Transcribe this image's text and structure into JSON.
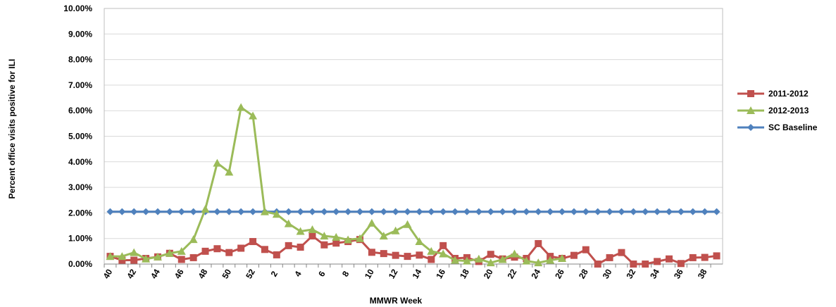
{
  "chart_data": {
    "type": "line",
    "title": "",
    "xlabel": "MMWR Week",
    "ylabel": "Percent office visits positive for ILI",
    "ylim": [
      0,
      10
    ],
    "y_tick_labels": [
      "0.00%",
      "1.00%",
      "2.00%",
      "3.00%",
      "4.00%",
      "5.00%",
      "6.00%",
      "7.00%",
      "8.00%",
      "9.00%",
      "10.00%"
    ],
    "grid": true,
    "legend_position": "right",
    "categories": [
      "40",
      "41",
      "42",
      "43",
      "44",
      "45",
      "46",
      "47",
      "48",
      "49",
      "50",
      "51",
      "52",
      "1",
      "2",
      "3",
      "4",
      "5",
      "6",
      "7",
      "8",
      "9",
      "10",
      "11",
      "12",
      "13",
      "14",
      "15",
      "16",
      "17",
      "18",
      "19",
      "20",
      "21",
      "22",
      "23",
      "24",
      "25",
      "26",
      "27",
      "28",
      "29",
      "30",
      "31",
      "32",
      "33",
      "34",
      "35",
      "36",
      "37",
      "38",
      "39"
    ],
    "x_tick_labels": [
      "40",
      "42",
      "44",
      "46",
      "48",
      "50",
      "52",
      "2",
      "4",
      "6",
      "8",
      "10",
      "12",
      "14",
      "16",
      "18",
      "20",
      "22",
      "24",
      "26",
      "28",
      "30",
      "32",
      "34",
      "36",
      "38"
    ],
    "series": [
      {
        "name": "2011-2012",
        "color": "#C0504D",
        "marker": "square",
        "values": [
          0.3,
          0.15,
          0.15,
          0.22,
          0.28,
          0.42,
          0.18,
          0.25,
          0.5,
          0.6,
          0.45,
          0.62,
          0.88,
          0.57,
          0.36,
          0.72,
          0.66,
          1.1,
          0.75,
          0.82,
          0.88,
          0.96,
          0.46,
          0.41,
          0.34,
          0.3,
          0.35,
          0.18,
          0.72,
          0.22,
          0.25,
          0.1,
          0.38,
          0.2,
          0.27,
          0.22,
          0.8,
          0.3,
          0.22,
          0.34,
          0.56,
          0.0,
          0.25,
          0.45,
          0.0,
          0.0,
          0.1,
          0.2,
          0.02,
          0.25,
          0.26,
          0.32
        ]
      },
      {
        "name": "2012-2013",
        "color": "#9BBB59",
        "marker": "triangle",
        "values": [
          0.3,
          0.3,
          0.45,
          0.2,
          0.28,
          0.42,
          0.5,
          0.96,
          2.15,
          3.95,
          3.6,
          6.13,
          5.8,
          2.05,
          1.95,
          1.58,
          1.28,
          1.35,
          1.1,
          1.05,
          0.95,
          1.0,
          1.6,
          1.1,
          1.3,
          1.55,
          0.88,
          0.5,
          0.4,
          0.15,
          0.12,
          0.2,
          0.05,
          0.18,
          0.4,
          0.12,
          0.05,
          0.15,
          0.22,
          null,
          null,
          null,
          null,
          null,
          null,
          null,
          null,
          null,
          null,
          null,
          null,
          null
        ]
      },
      {
        "name": "SC Baseline",
        "color": "#4F81BD",
        "marker": "diamond",
        "values": [
          2.05,
          2.05,
          2.05,
          2.05,
          2.05,
          2.05,
          2.05,
          2.05,
          2.05,
          2.05,
          2.05,
          2.05,
          2.05,
          2.05,
          2.05,
          2.05,
          2.05,
          2.05,
          2.05,
          2.05,
          2.05,
          2.05,
          2.05,
          2.05,
          2.05,
          2.05,
          2.05,
          2.05,
          2.05,
          2.05,
          2.05,
          2.05,
          2.05,
          2.05,
          2.05,
          2.05,
          2.05,
          2.05,
          2.05,
          2.05,
          2.05,
          2.05,
          2.05,
          2.05,
          2.05,
          2.05,
          2.05,
          2.05,
          2.05,
          2.05,
          2.05,
          2.05
        ]
      }
    ]
  }
}
